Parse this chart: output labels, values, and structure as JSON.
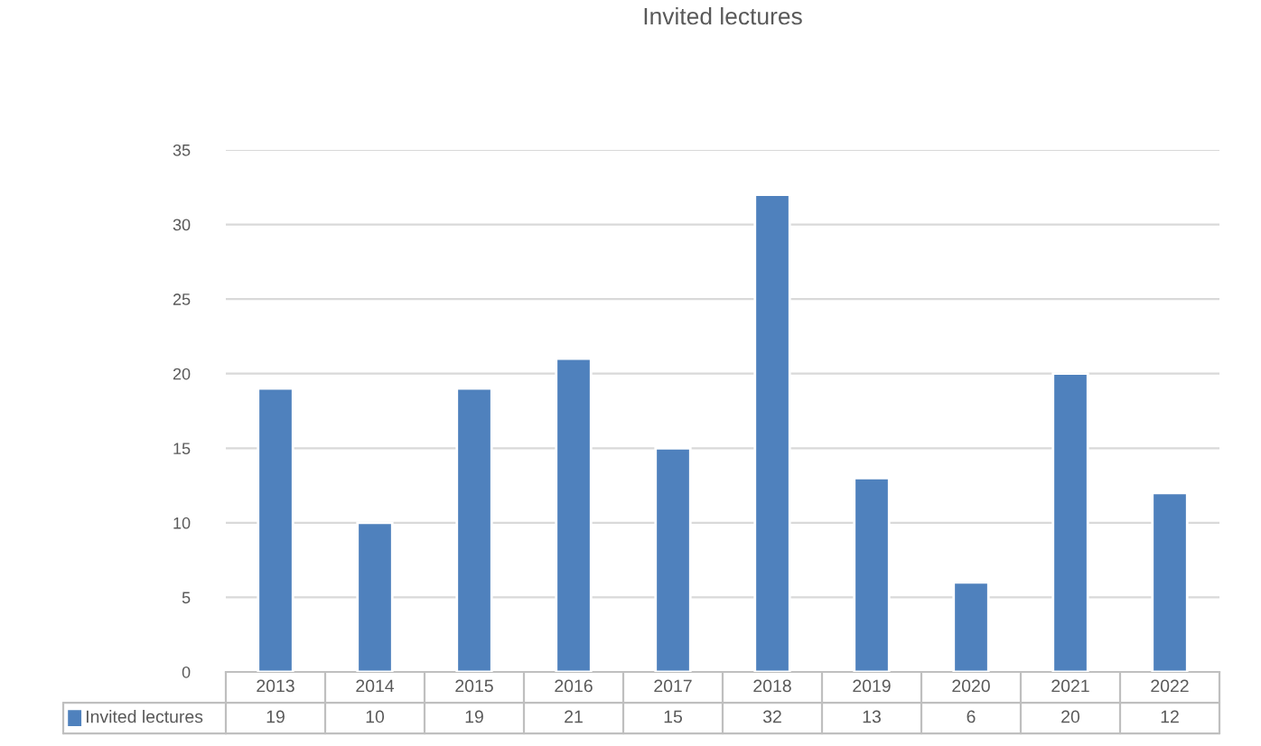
{
  "chart_data": {
    "type": "bar",
    "title": "Invited lectures",
    "categories": [
      "2013",
      "2014",
      "2015",
      "2016",
      "2017",
      "2018",
      "2019",
      "2020",
      "2021",
      "2022"
    ],
    "series": [
      {
        "name": "Invited lectures",
        "color": "#4f81bd",
        "values": [
          19,
          10,
          19,
          21,
          15,
          32,
          13,
          6,
          20,
          12
        ]
      }
    ],
    "ylim": [
      0,
      35
    ],
    "yticks": [
      0,
      5,
      10,
      15,
      20,
      25,
      30,
      35
    ],
    "grid": "y",
    "data_labels": true
  }
}
